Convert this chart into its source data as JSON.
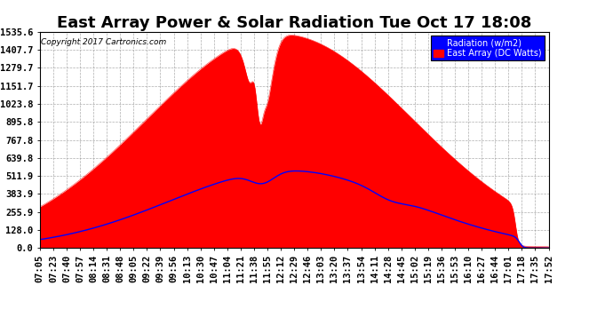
{
  "title": "East Array Power & Solar Radiation Tue Oct 17 18:08",
  "copyright": "Copyright 2017 Cartronics.com",
  "legend_labels": [
    "Radiation (w/m2)",
    "East Array (DC Watts)"
  ],
  "legend_colors": [
    "blue",
    "red"
  ],
  "y_tick_values": [
    0.0,
    128.0,
    255.9,
    383.9,
    511.9,
    639.8,
    767.8,
    895.8,
    1023.8,
    1151.7,
    1279.7,
    1407.7,
    1535.6
  ],
  "y_max": 1535.6,
  "y_min": 0.0,
  "background_color": "#ffffff",
  "plot_bg_color": "#ffffff",
  "grid_color": "#999999",
  "x_labels": [
    "07:05",
    "07:23",
    "07:40",
    "07:57",
    "08:14",
    "08:31",
    "08:48",
    "09:05",
    "09:22",
    "09:39",
    "09:56",
    "10:13",
    "10:30",
    "10:47",
    "11:04",
    "11:21",
    "11:38",
    "11:55",
    "12:12",
    "12:29",
    "12:46",
    "13:03",
    "13:20",
    "13:37",
    "13:54",
    "14:11",
    "14:28",
    "14:45",
    "15:02",
    "15:19",
    "15:36",
    "15:53",
    "16:10",
    "16:27",
    "16:44",
    "17:01",
    "17:18",
    "17:35",
    "17:52"
  ],
  "title_fontsize": 13,
  "tick_fontsize": 7.5
}
